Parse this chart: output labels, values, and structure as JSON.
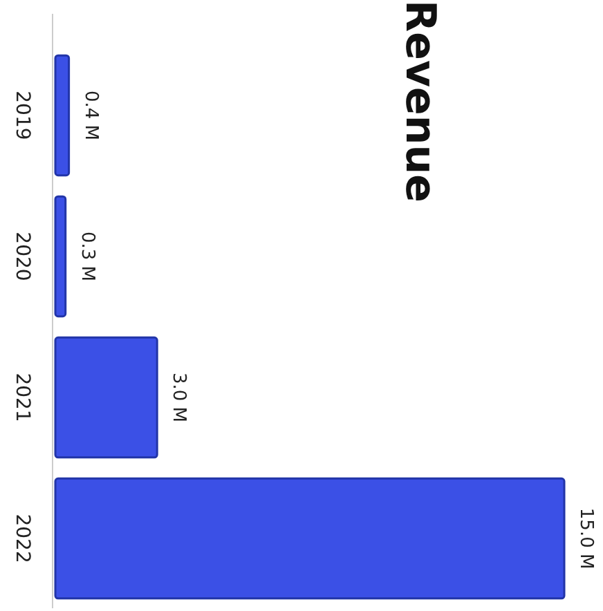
{
  "chart_data": {
    "type": "bar",
    "orientation": "horizontal",
    "title": "Revenue",
    "categories": [
      "2019",
      "2020",
      "2021",
      "2022"
    ],
    "values": [
      0.4,
      0.3,
      3.0,
      15.0
    ],
    "value_labels": [
      "0.4 M",
      "0.3 M",
      "3.0 M",
      "15.0 M"
    ],
    "color": "#3b50e6",
    "xlim": [
      0,
      15
    ],
    "tick_labels": "y"
  }
}
